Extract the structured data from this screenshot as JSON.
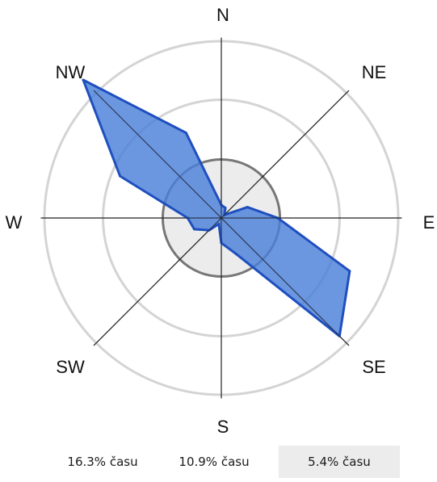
{
  "chart_data": {
    "type": "radar",
    "directions": [
      "N",
      "NE",
      "E",
      "SE",
      "S",
      "SW",
      "W",
      "NW"
    ],
    "direction_angles_deg": [
      0,
      45,
      90,
      135,
      180,
      225,
      270,
      315
    ],
    "rings": [
      {
        "label": "16.3% času",
        "value": 16.3
      },
      {
        "label": "10.9% času",
        "value": 10.9
      },
      {
        "label": "5.4% času",
        "value": 5.4
      }
    ],
    "calm_value": 5.4,
    "series": [
      {
        "angles_deg": [
          0,
          22.5,
          45,
          67.5,
          90,
          112.5,
          135,
          157.5,
          180,
          202.5,
          225,
          247.5,
          270,
          292.5,
          315,
          337.5
        ],
        "values": [
          1.2,
          1.0,
          0.4,
          2.6,
          5.2,
          12.8,
          15.4,
          3.6,
          2.3,
          0.6,
          1.6,
          2.7,
          3.1,
          10.1,
          18.0,
          8.5
        ]
      }
    ],
    "colors": {
      "fill": "#4a7fd9",
      "stroke": "#1f4fbf",
      "rings": "#d4d4d4",
      "inner_ring": "#777777",
      "calm_fill": "#ececec",
      "axes": "#222222"
    }
  }
}
